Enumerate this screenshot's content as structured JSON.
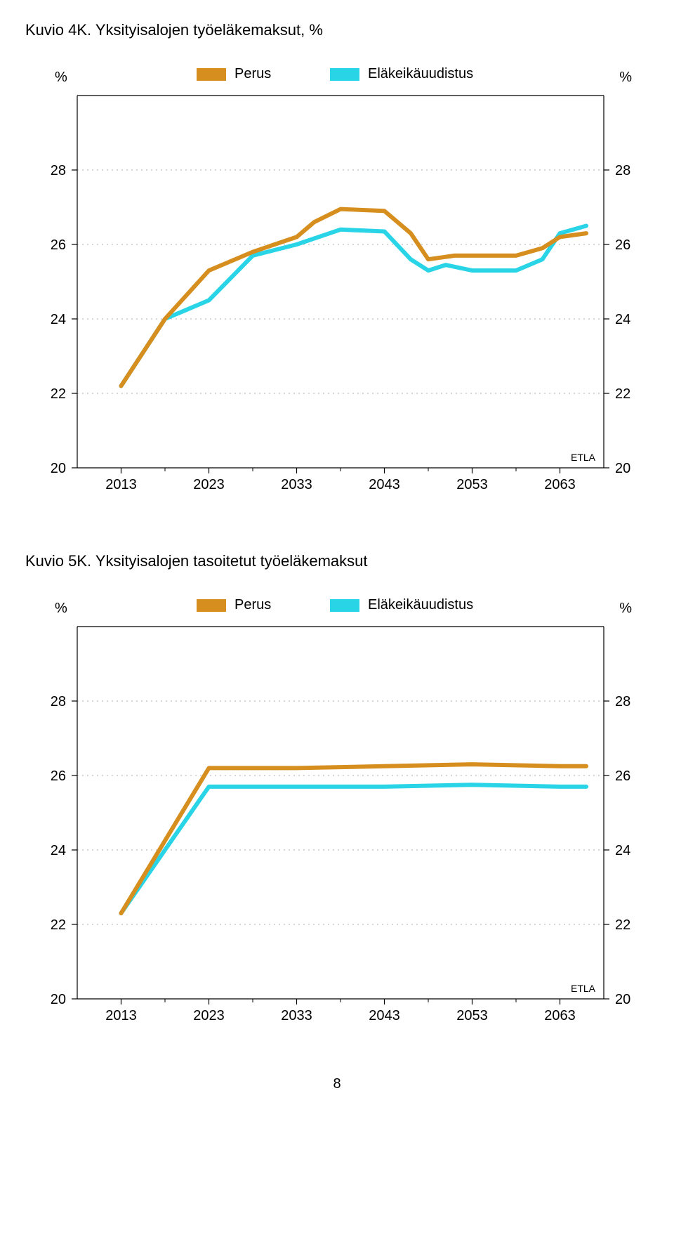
{
  "page_number": "8",
  "chart1": {
    "type": "line",
    "title": "Kuvio 4K. Yksityisalojen työeläkemaksut, %",
    "ylabel_left": "%",
    "ylabel_right": "%",
    "legend": {
      "perus": "Perus",
      "elake": "Eläkeikäuudistus"
    },
    "etla_label": "ETLA",
    "xticks": [
      "2013",
      "2023",
      "2033",
      "2043",
      "2053",
      "2063"
    ],
    "yticks": [
      "28",
      "26",
      "24",
      "22",
      "20"
    ],
    "xlim": [
      2008,
      2068
    ],
    "ylim": [
      20,
      30
    ],
    "series": {
      "perus": {
        "color": "#d68f1f",
        "width": 6,
        "points": [
          [
            2013,
            22.2
          ],
          [
            2018,
            24.0
          ],
          [
            2023,
            25.3
          ],
          [
            2028,
            25.8
          ],
          [
            2033,
            26.2
          ],
          [
            2035,
            26.6
          ],
          [
            2038,
            26.95
          ],
          [
            2043,
            26.9
          ],
          [
            2046,
            26.3
          ],
          [
            2048,
            25.6
          ],
          [
            2051,
            25.7
          ],
          [
            2053,
            25.7
          ],
          [
            2058,
            25.7
          ],
          [
            2061,
            25.9
          ],
          [
            2063,
            26.2
          ],
          [
            2066,
            26.3
          ]
        ]
      },
      "elake": {
        "color": "#29d4e6",
        "width": 6,
        "points": [
          [
            2013,
            22.2
          ],
          [
            2018,
            24.0
          ],
          [
            2023,
            24.5
          ],
          [
            2028,
            25.7
          ],
          [
            2033,
            26.0
          ],
          [
            2038,
            26.4
          ],
          [
            2043,
            26.35
          ],
          [
            2046,
            25.6
          ],
          [
            2048,
            25.3
          ],
          [
            2050,
            25.45
          ],
          [
            2053,
            25.3
          ],
          [
            2058,
            25.3
          ],
          [
            2061,
            25.6
          ],
          [
            2063,
            26.3
          ],
          [
            2066,
            26.5
          ]
        ]
      }
    },
    "colors": {
      "background": "#ffffff",
      "grid": "#bdbdbd",
      "axis": "#000000",
      "perus_swatch": "#d68f1f",
      "elake_swatch": "#29d4e6"
    },
    "fontsize": {
      "title": 22,
      "tick": 20,
      "legend": 20,
      "etla": 14
    }
  },
  "chart2": {
    "type": "line",
    "title": "Kuvio 5K. Yksityisalojen tasoitetut työeläkemaksut",
    "ylabel_left": "%",
    "ylabel_right": "%",
    "legend": {
      "perus": "Perus",
      "elake": "Eläkeikäuudistus"
    },
    "etla_label": "ETLA",
    "xticks": [
      "2013",
      "2023",
      "2033",
      "2043",
      "2053",
      "2063"
    ],
    "yticks": [
      "28",
      "26",
      "24",
      "22",
      "20"
    ],
    "xlim": [
      2008,
      2068
    ],
    "ylim": [
      20,
      30
    ],
    "series": {
      "perus": {
        "color": "#d68f1f",
        "width": 6,
        "points": [
          [
            2013,
            22.3
          ],
          [
            2023,
            26.2
          ],
          [
            2033,
            26.2
          ],
          [
            2043,
            26.25
          ],
          [
            2053,
            26.3
          ],
          [
            2063,
            26.25
          ],
          [
            2066,
            26.25
          ]
        ]
      },
      "elake": {
        "color": "#29d4e6",
        "width": 6,
        "points": [
          [
            2013,
            22.3
          ],
          [
            2023,
            25.7
          ],
          [
            2033,
            25.7
          ],
          [
            2043,
            25.7
          ],
          [
            2053,
            25.75
          ],
          [
            2063,
            25.7
          ],
          [
            2066,
            25.7
          ]
        ]
      }
    },
    "colors": {
      "background": "#ffffff",
      "grid": "#bdbdbd",
      "axis": "#000000",
      "perus_swatch": "#d68f1f",
      "elake_swatch": "#29d4e6"
    },
    "fontsize": {
      "title": 22,
      "tick": 20,
      "legend": 20,
      "etla": 14
    }
  }
}
